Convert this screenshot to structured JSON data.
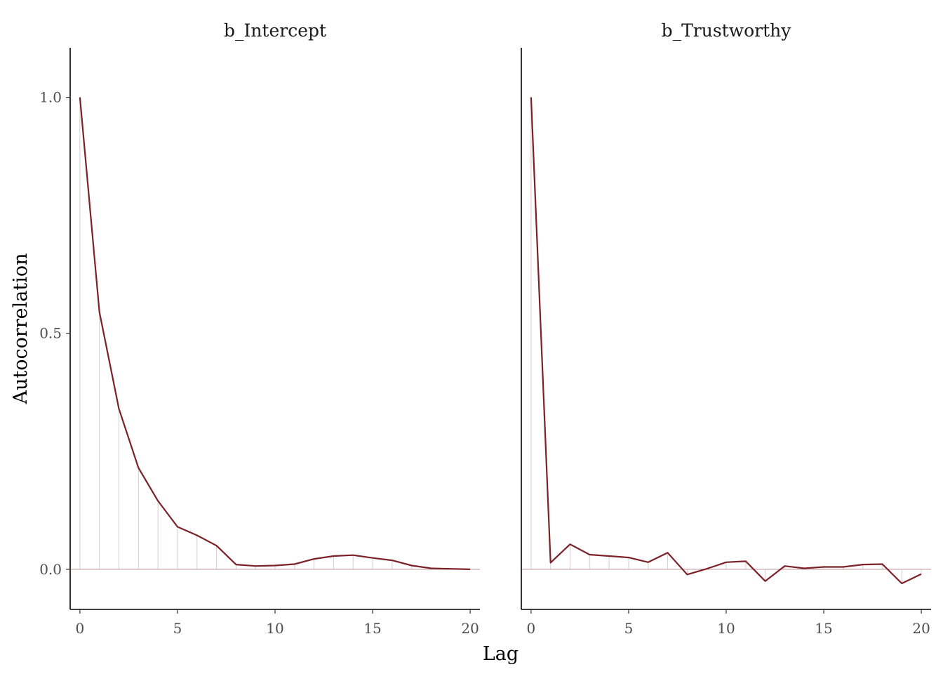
{
  "chart_data": {
    "type": "line",
    "xlabel": "Lag",
    "ylabel": "Autocorrelation",
    "x_ticks": [
      0,
      5,
      10,
      15,
      20
    ],
    "y_ticks": [
      "0.0",
      "0.5",
      "1.0"
    ],
    "xlim": [
      -0.5,
      20.5
    ],
    "ylim": [
      -0.085,
      1.105
    ],
    "grid": false,
    "colors": {
      "line": "#7b2128",
      "bar": "#dccbcd",
      "zero": "#c9a9ab"
    },
    "lags": [
      0,
      1,
      2,
      3,
      4,
      5,
      6,
      7,
      8,
      9,
      10,
      11,
      12,
      13,
      14,
      15,
      16,
      17,
      18,
      19,
      20
    ],
    "panels": [
      {
        "title": "b_Intercept",
        "values": [
          1.0,
          0.545,
          0.34,
          0.215,
          0.145,
          0.09,
          0.072,
          0.05,
          0.01,
          0.007,
          0.008,
          0.011,
          0.022,
          0.028,
          0.03,
          0.024,
          0.019,
          0.008,
          0.002,
          0.001,
          0.0
        ]
      },
      {
        "title": "b_Trustworthy",
        "values": [
          1.0,
          0.014,
          0.053,
          0.031,
          0.028,
          0.025,
          0.015,
          0.035,
          -0.011,
          0.001,
          0.015,
          0.017,
          -0.025,
          0.007,
          0.002,
          0.005,
          0.005,
          0.01,
          0.011,
          -0.03,
          -0.01
        ]
      }
    ]
  }
}
